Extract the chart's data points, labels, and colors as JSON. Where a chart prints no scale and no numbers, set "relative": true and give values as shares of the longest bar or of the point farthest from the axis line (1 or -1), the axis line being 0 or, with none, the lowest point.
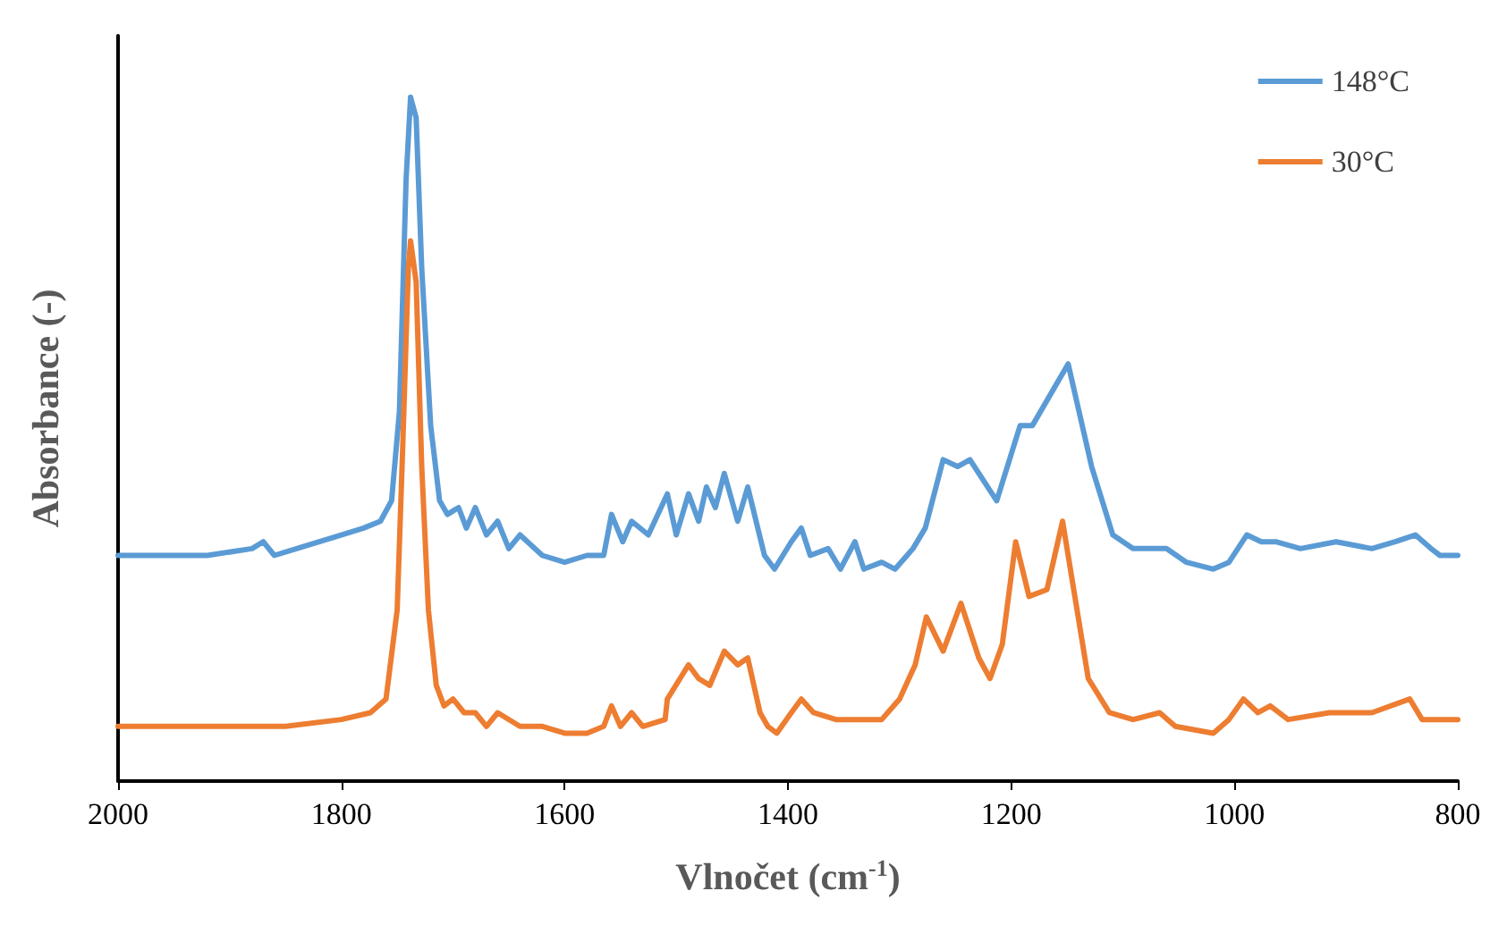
{
  "chart_data": {
    "type": "line",
    "xlabel": "Vlnočet (cm$^{-1}$)",
    "ylabel": "Absorbance (-)",
    "relative": true,
    "xlim": [
      2000,
      800
    ],
    "xticks": [
      2000,
      1800,
      1600,
      1400,
      1200,
      1000,
      800
    ],
    "grid": false,
    "legend": "top right",
    "marker": "none",
    "line_style": "solid",
    "series": [
      {
        "name": "148°C",
        "color": "#5b9bd5",
        "x": [
          2000,
          1960,
          1920,
          1880,
          1870,
          1860,
          1840,
          1800,
          1780,
          1765,
          1755,
          1748,
          1742,
          1738,
          1733,
          1728,
          1720,
          1712,
          1705,
          1695,
          1688,
          1680,
          1670,
          1660,
          1650,
          1640,
          1620,
          1600,
          1580,
          1565,
          1558,
          1548,
          1540,
          1525,
          1508,
          1500,
          1489,
          1480,
          1473,
          1465,
          1457,
          1445,
          1436,
          1421,
          1412,
          1397,
          1388,
          1380,
          1364,
          1353,
          1340,
          1332,
          1316,
          1304,
          1288,
          1277,
          1261,
          1248,
          1237,
          1213,
          1192,
          1181,
          1149,
          1128,
          1109,
          1091,
          1061,
          1043,
          1019,
          1005,
          989,
          976,
          963,
          941,
          909,
          877,
          856,
          838,
          824,
          816,
          800
        ],
        "values": [
          0.33,
          0.33,
          0.33,
          0.34,
          0.35,
          0.33,
          0.34,
          0.36,
          0.37,
          0.38,
          0.41,
          0.54,
          0.88,
          1.0,
          0.97,
          0.75,
          0.52,
          0.41,
          0.39,
          0.4,
          0.37,
          0.4,
          0.36,
          0.38,
          0.34,
          0.36,
          0.33,
          0.32,
          0.33,
          0.33,
          0.39,
          0.35,
          0.38,
          0.36,
          0.42,
          0.36,
          0.42,
          0.38,
          0.43,
          0.4,
          0.45,
          0.38,
          0.43,
          0.33,
          0.31,
          0.35,
          0.37,
          0.33,
          0.34,
          0.31,
          0.35,
          0.31,
          0.32,
          0.31,
          0.34,
          0.37,
          0.47,
          0.46,
          0.47,
          0.41,
          0.52,
          0.52,
          0.61,
          0.46,
          0.36,
          0.34,
          0.34,
          0.32,
          0.31,
          0.32,
          0.36,
          0.35,
          0.35,
          0.34,
          0.35,
          0.34,
          0.35,
          0.36,
          0.34,
          0.33,
          0.33
        ]
      },
      {
        "name": "30°C",
        "color": "#ed7d31",
        "x": [
          2000,
          1900,
          1850,
          1800,
          1774,
          1760,
          1750,
          1745,
          1740,
          1738,
          1733,
          1728,
          1722,
          1715,
          1708,
          1700,
          1690,
          1680,
          1670,
          1660,
          1640,
          1620,
          1600,
          1580,
          1565,
          1558,
          1550,
          1540,
          1530,
          1510,
          1508,
          1489,
          1480,
          1470,
          1457,
          1445,
          1436,
          1425,
          1418,
          1410,
          1397,
          1388,
          1377,
          1357,
          1340,
          1316,
          1300,
          1286,
          1276,
          1261,
          1245,
          1229,
          1219,
          1208,
          1196,
          1184,
          1168,
          1154,
          1144,
          1131,
          1112,
          1091,
          1067,
          1053,
          1019,
          1005,
          992,
          979,
          968,
          952,
          915,
          899,
          877,
          843,
          832,
          816,
          800
        ],
        "values": [
          0.08,
          0.08,
          0.08,
          0.09,
          0.1,
          0.12,
          0.25,
          0.49,
          0.75,
          0.79,
          0.73,
          0.46,
          0.25,
          0.14,
          0.11,
          0.12,
          0.1,
          0.1,
          0.08,
          0.1,
          0.08,
          0.08,
          0.07,
          0.07,
          0.08,
          0.11,
          0.08,
          0.1,
          0.08,
          0.09,
          0.12,
          0.17,
          0.15,
          0.14,
          0.19,
          0.17,
          0.18,
          0.1,
          0.08,
          0.07,
          0.1,
          0.12,
          0.1,
          0.09,
          0.09,
          0.09,
          0.12,
          0.17,
          0.24,
          0.19,
          0.26,
          0.18,
          0.15,
          0.2,
          0.35,
          0.27,
          0.28,
          0.38,
          0.28,
          0.15,
          0.1,
          0.09,
          0.1,
          0.08,
          0.07,
          0.09,
          0.12,
          0.1,
          0.11,
          0.09,
          0.1,
          0.1,
          0.1,
          0.12,
          0.09,
          0.09,
          0.09
        ]
      }
    ]
  }
}
